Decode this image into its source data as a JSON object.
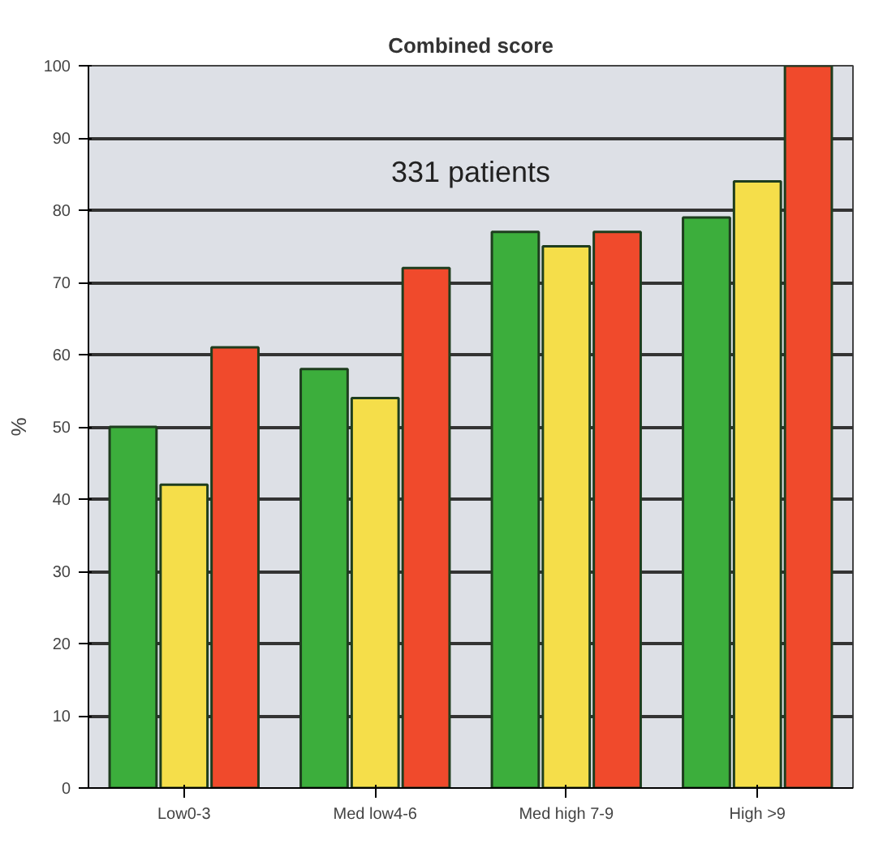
{
  "chart_data": {
    "type": "bar",
    "title": "Combined score",
    "ylabel": "%",
    "categories": [
      "Low0-3",
      "Med low4-6",
      "Med high 7-9",
      "High >9"
    ],
    "series": [
      {
        "color": "#3cae3c",
        "values": [
          50,
          58,
          77,
          79
        ]
      },
      {
        "color": "#f5de4a",
        "values": [
          42,
          54,
          75,
          84
        ]
      },
      {
        "color": "#f04a2c",
        "values": [
          61,
          72,
          77,
          100
        ]
      }
    ],
    "ylim": [
      0,
      100
    ],
    "yticks": [
      0,
      10,
      20,
      30,
      40,
      50,
      60,
      70,
      80,
      90,
      100
    ],
    "grid": "y",
    "annotations": [
      "331 patients"
    ]
  }
}
